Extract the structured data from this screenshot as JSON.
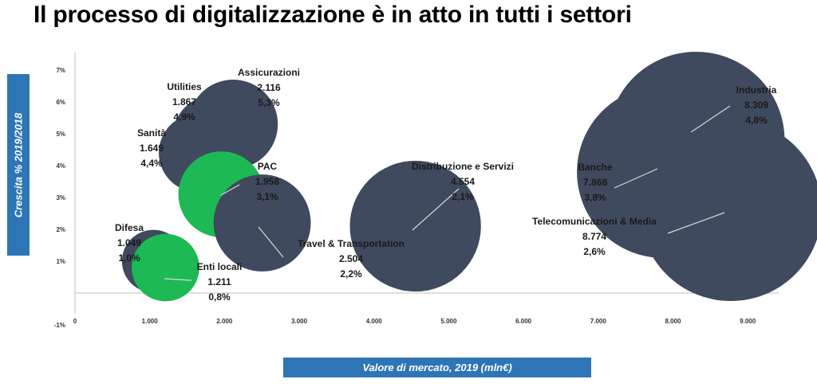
{
  "title": "Il processo di digitalizzazione è in atto in tutti i settori",
  "colors": {
    "bubble_default": "#3f4a5e",
    "bubble_highlight": "#1db954",
    "label_box": "#2e75b6"
  },
  "chart_data": {
    "type": "scatter",
    "title": "",
    "xlabel": "Valore di mercato, 2019 (mln€)",
    "ylabel": "Crescita % 2019/2018",
    "xlim": [
      0,
      9500
    ],
    "ylim": [
      -1,
      7
    ],
    "x_ticks": [
      {
        "value": 0,
        "label": "0"
      },
      {
        "value": 1000,
        "label": "1.000"
      },
      {
        "value": 2000,
        "label": "2.000"
      },
      {
        "value": 3000,
        "label": "3.000"
      },
      {
        "value": 4000,
        "label": "4.000"
      },
      {
        "value": 5000,
        "label": "5.000"
      },
      {
        "value": 6000,
        "label": "6.000"
      },
      {
        "value": 7000,
        "label": "7.000"
      },
      {
        "value": 8000,
        "label": "8.000"
      },
      {
        "value": 9000,
        "label": "9.000"
      }
    ],
    "y_ticks": [
      {
        "value": -1,
        "label": "-1%"
      },
      {
        "value": 1,
        "label": "1%"
      },
      {
        "value": 2,
        "label": "2%"
      },
      {
        "value": 3,
        "label": "3%"
      },
      {
        "value": 4,
        "label": "4%"
      },
      {
        "value": 5,
        "label": "5%"
      },
      {
        "value": 6,
        "label": "6%"
      },
      {
        "value": 7,
        "label": "7%"
      }
    ],
    "points": [
      {
        "id": "assicurazioni",
        "name": "Assicurazioni",
        "value_label": "2.116",
        "growth_label": "5,3%",
        "x": 2116,
        "y": 5.3,
        "size": 2116,
        "highlight": false
      },
      {
        "id": "utilities",
        "name": "Utilities",
        "value_label": "1.867",
        "growth_label": "4,9%",
        "x": 1867,
        "y": 4.9,
        "size": 1867,
        "highlight": false
      },
      {
        "id": "sanita",
        "name": "Sanità",
        "value_label": "1.649",
        "growth_label": "4,4%",
        "x": 1649,
        "y": 4.4,
        "size": 1649,
        "highlight": false
      },
      {
        "id": "pac",
        "name": "PAC",
        "value_label": "1.958",
        "growth_label": "3,1%",
        "x": 1958,
        "y": 3.1,
        "size": 1958,
        "highlight": true
      },
      {
        "id": "difesa",
        "name": "Difesa",
        "value_label": "1.049",
        "growth_label": "1,0%",
        "x": 1049,
        "y": 1.0,
        "size": 1049,
        "highlight": false
      },
      {
        "id": "enti-locali",
        "name": "Enti locali",
        "value_label": "1.211",
        "growth_label": "0,8%",
        "x": 1211,
        "y": 0.8,
        "size": 1211,
        "highlight": true
      },
      {
        "id": "travel",
        "name": "Travel & Transportation",
        "value_label": "2.504",
        "growth_label": "2,2%",
        "x": 2504,
        "y": 2.2,
        "size": 2504,
        "highlight": false
      },
      {
        "id": "distribuzione",
        "name": "Distribuzione e Servizi",
        "value_label": "4.554",
        "growth_label": "2,1%",
        "x": 4554,
        "y": 2.1,
        "size": 4554,
        "highlight": false
      },
      {
        "id": "industria",
        "name": "Industria",
        "value_label": "8.309",
        "growth_label": "4,8%",
        "x": 8309,
        "y": 4.8,
        "size": 8309,
        "highlight": false
      },
      {
        "id": "banche",
        "name": "Banche",
        "value_label": "7.868",
        "growth_label": "3,8%",
        "x": 7868,
        "y": 3.8,
        "size": 7868,
        "highlight": false
      },
      {
        "id": "telecomunicazioni",
        "name": "Telecomunicazioni & Media",
        "value_label": "8.774",
        "growth_label": "2,6%",
        "x": 8774,
        "y": 2.6,
        "size": 8774,
        "highlight": false
      }
    ]
  }
}
